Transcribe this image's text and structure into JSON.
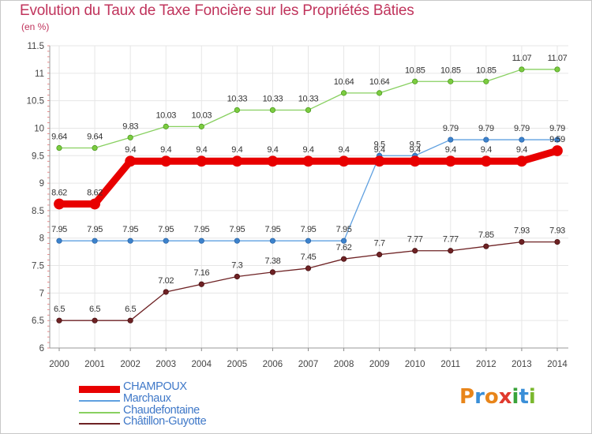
{
  "title": "Evolution du Taux de Taxe Foncière sur les Propriétés Bâties",
  "subtitle": "(en %)",
  "logo": "Proxiti",
  "logo_letters": [
    "P",
    "r",
    "o",
    "x",
    "i",
    "t",
    "i"
  ],
  "logo_colors": [
    "#e8851a",
    "#3a8fd8",
    "#e8851a",
    "#e03a2e",
    "#3aa33a",
    "#3a8fd8",
    "#7ab82e"
  ],
  "chart_data": {
    "type": "line",
    "title": "Evolution du Taux de Taxe Foncière sur les Propriétés Bâties",
    "ylabel": "(en %)",
    "xlabel": "",
    "ylim": [
      6,
      11.5
    ],
    "yticks": [
      "6",
      "6.5",
      "7",
      "7.5",
      "8",
      "8.5",
      "9",
      "9.5",
      "10",
      "10.5",
      "11",
      "11.5"
    ],
    "ytick_values": [
      6,
      6.5,
      7,
      7.5,
      8,
      8.5,
      9,
      9.5,
      10,
      10.5,
      11,
      11.5
    ],
    "x": [
      "2000",
      "2001",
      "2002",
      "2003",
      "2004",
      "2005",
      "2006",
      "2007",
      "2008",
      "2009",
      "2010",
      "2011",
      "2012",
      "2013",
      "2014"
    ],
    "grid": true,
    "series": [
      {
        "name": "CHAMPOUX",
        "color": "#e80000",
        "values": [
          8.62,
          8.62,
          9.4,
          9.4,
          9.4,
          9.4,
          9.4,
          9.4,
          9.4,
          9.4,
          9.4,
          9.4,
          9.4,
          9.4,
          9.59
        ],
        "labels": [
          "8.62",
          "8.62",
          "9.4",
          "9.4",
          "9.4",
          "9.4",
          "9.4",
          "9.4",
          "9.4",
          "9.4",
          "9.4",
          "9.4",
          "9.4",
          "9.4",
          "9.59"
        ]
      },
      {
        "name": "Marchaux",
        "color": "#5fa0e0",
        "values": [
          7.95,
          7.95,
          7.95,
          7.95,
          7.95,
          7.95,
          7.95,
          7.95,
          7.95,
          9.5,
          9.5,
          9.79,
          9.79,
          9.79,
          9.79
        ],
        "labels": [
          "7.95",
          "7.95",
          "7.95",
          "7.95",
          "7.95",
          "7.95",
          "7.95",
          "7.95",
          "7.95",
          "9.5",
          "9.5",
          "9.79",
          "9.79",
          "9.79",
          "9.79"
        ]
      },
      {
        "name": "Chaudefontaine",
        "color": "#88d060",
        "values": [
          9.64,
          9.64,
          9.83,
          10.03,
          10.03,
          10.33,
          10.33,
          10.33,
          10.64,
          10.64,
          10.85,
          10.85,
          10.85,
          11.07,
          11.07
        ],
        "labels": [
          "9.64",
          "9.64",
          "9.83",
          "10.03",
          "10.03",
          "10.33",
          "10.33",
          "10.33",
          "10.64",
          "10.64",
          "10.85",
          "10.85",
          "10.85",
          "11.07",
          "11.07"
        ]
      },
      {
        "name": "Châtillon-Guyotte",
        "color": "#6e2224",
        "values": [
          6.5,
          6.5,
          6.5,
          7.02,
          7.16,
          7.3,
          7.38,
          7.45,
          7.62,
          7.7,
          7.77,
          7.77,
          7.85,
          7.93,
          7.93
        ],
        "labels": [
          "6.5",
          "6.5",
          "6.5",
          "7.02",
          "7.16",
          "7.3",
          "7.38",
          "7.45",
          "7.62",
          "7.7",
          "7.77",
          "7.77",
          "7.85",
          "7.93",
          "7.93"
        ]
      }
    ]
  }
}
